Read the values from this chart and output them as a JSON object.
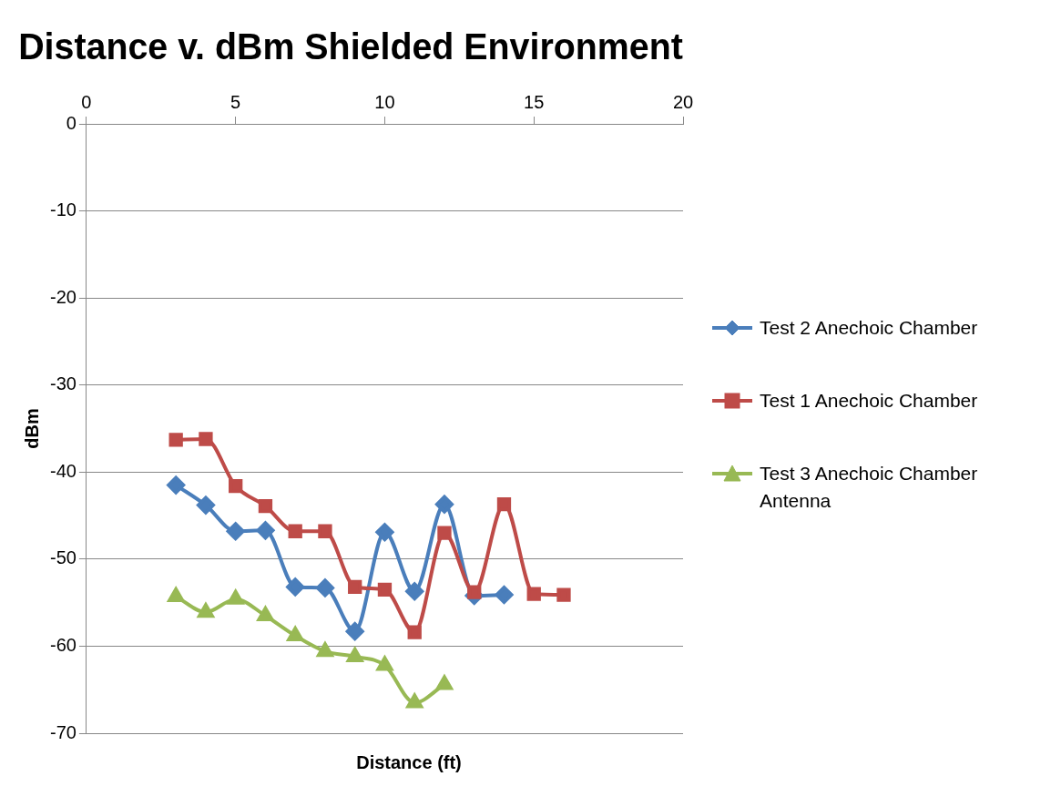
{
  "chart_data": {
    "type": "line",
    "title": "Distance v. dBm Shielded Environment",
    "xlabel": "Distance (ft)",
    "ylabel": "dBm",
    "xlim": [
      0,
      20
    ],
    "xticks": [
      0,
      5,
      10,
      15,
      20
    ],
    "ylim": [
      -70,
      0
    ],
    "yticks": [
      -70,
      -60,
      -50,
      -40,
      -30,
      -20,
      -10,
      0
    ],
    "grid": "y",
    "legend": "right",
    "series": [
      {
        "name": "Test 2 Anechoic Chamber",
        "color": "#4a7ebb",
        "marker": "diamond",
        "x": [
          3,
          4,
          5,
          6,
          7,
          8,
          9,
          10,
          11,
          12,
          13,
          14
        ],
        "values": [
          -41.5,
          -43.8,
          -46.8,
          -46.7,
          -53.2,
          -53.3,
          -58.3,
          -46.9,
          -53.7,
          -43.7,
          -54.2,
          -54.1
        ]
      },
      {
        "name": "Test 1 Anechoic Chamber",
        "color": "#be4b48",
        "marker": "square",
        "x": [
          3,
          4,
          5,
          6,
          7,
          8,
          9,
          10,
          11,
          12,
          13,
          14,
          15,
          16
        ],
        "values": [
          -36.3,
          -36.2,
          -41.6,
          -43.9,
          -46.8,
          -46.8,
          -53.2,
          -53.5,
          -58.4,
          -47,
          -53.8,
          -43.7,
          -54,
          -54.1
        ]
      },
      {
        "name": "Test 3 Anechoic Chamber Antenna",
        "color": "#98b954",
        "marker": "triangle",
        "x": [
          3,
          4,
          5,
          6,
          7,
          8,
          9,
          10,
          11,
          12
        ],
        "values": [
          -54.3,
          -56.1,
          -54.6,
          -56.5,
          -58.8,
          -60.6,
          -61.2,
          -62.2,
          -66.5,
          -64.4
        ]
      }
    ]
  }
}
